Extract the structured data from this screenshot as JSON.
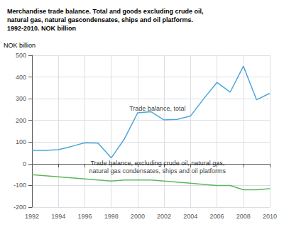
{
  "chart_data": {
    "type": "line",
    "title": "Merchandise trade balance. Total and goods excluding crude oil,\nnatural gas, natural gascondensates, ships and oil platforms.\n1992-2010. NOK billion",
    "ylabel": "NOK billion",
    "x": [
      1992,
      1993,
      1994,
      1995,
      1996,
      1997,
      1998,
      1999,
      2000,
      2001,
      2002,
      2003,
      2004,
      2005,
      2006,
      2007,
      2008,
      2009,
      2010
    ],
    "series": [
      {
        "color": "#4da6d9",
        "values": [
          62,
          62,
          65,
          80,
          97,
          95,
          27,
          115,
          235,
          240,
          202,
          205,
          220,
          300,
          375,
          330,
          450,
          295,
          325
        ]
      },
      {
        "color": "#5cb85c",
        "values": [
          -50,
          -55,
          -60,
          -65,
          -70,
          -75,
          -80,
          -75,
          -75,
          -75,
          -80,
          -85,
          -90,
          -95,
          -100,
          -100,
          -120,
          -120,
          -115
        ]
      }
    ],
    "annotations": [
      {
        "text": "Trade balance, total",
        "x": 2001.5,
        "y": 255
      },
      {
        "text": "Trade balance, excluding crude oil, natural gas,\nnatural gas condensates, ships and oil platforms",
        "x": 2001.5,
        "y": -15
      }
    ],
    "xlim": [
      1992,
      2010
    ],
    "xticks": [
      1992,
      1994,
      1996,
      1998,
      2000,
      2002,
      2004,
      2006,
      2008,
      2010
    ],
    "ylim": [
      -200,
      500
    ],
    "yticks": [
      -200,
      -100,
      0,
      100,
      200,
      300,
      400,
      500
    ],
    "grid": true
  }
}
